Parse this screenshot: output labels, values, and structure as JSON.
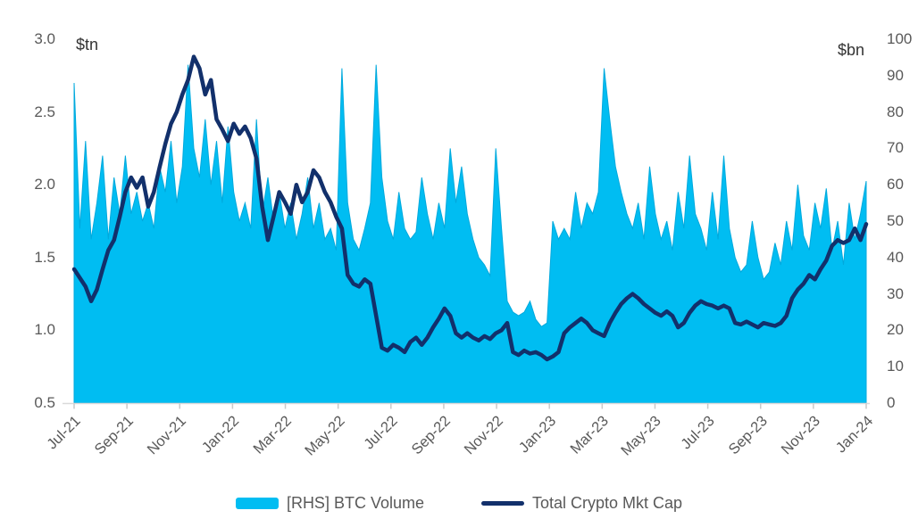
{
  "chart_data": {
    "type": [
      "area",
      "line"
    ],
    "title": "",
    "grid": false,
    "legend_position": "bottom",
    "x_tick_labels": [
      "Jul-21",
      "Sep-21",
      "Nov-21",
      "Jan-22",
      "Mar-22",
      "May-22",
      "Jul-22",
      "Sep-22",
      "Nov-22",
      "Jan-23",
      "Mar-23",
      "May-23",
      "Jul-23",
      "Sep-23",
      "Nov-23",
      "Jan-24"
    ],
    "x_range_months": 30,
    "left_axis": {
      "label": "$tn",
      "min": 0.5,
      "max": 3.0,
      "ticks": [
        "3.0",
        "2.5",
        "2.0",
        "1.5",
        "1.0",
        "0.5"
      ],
      "tick_values": [
        3.0,
        2.5,
        2.0,
        1.5,
        1.0,
        0.5
      ]
    },
    "right_axis": {
      "label": "$bn",
      "min": 0,
      "max": 100,
      "ticks": [
        "100",
        "90",
        "80",
        "70",
        "60",
        "50",
        "40",
        "30",
        "20",
        "10",
        "0"
      ],
      "tick_values": [
        100,
        90,
        80,
        70,
        60,
        50,
        40,
        30,
        20,
        10,
        0
      ]
    },
    "series": [
      {
        "name": "[RHS] BTC Volume",
        "type": "area",
        "axis": "right",
        "color": "#00bdf2",
        "edge_color": "#00a9dd",
        "values": [
          88,
          48,
          72,
          45,
          55,
          68,
          45,
          62,
          52,
          68,
          52,
          58,
          50,
          55,
          48,
          65,
          58,
          72,
          55,
          65,
          93,
          70,
          62,
          78,
          60,
          72,
          55,
          76,
          58,
          50,
          55,
          48,
          78,
          52,
          62,
          50,
          58,
          48,
          55,
          45,
          52,
          62,
          48,
          55,
          45,
          48,
          42,
          92,
          55,
          45,
          42,
          48,
          55,
          93,
          62,
          50,
          45,
          58,
          48,
          45,
          47,
          62,
          52,
          45,
          55,
          48,
          70,
          55,
          65,
          52,
          45,
          40,
          38,
          35,
          70,
          48,
          28,
          25,
          24,
          25,
          28,
          23,
          21,
          22,
          50,
          45,
          48,
          45,
          58,
          48,
          55,
          52,
          58,
          92,
          78,
          65,
          58,
          52,
          48,
          55,
          45,
          65,
          52,
          45,
          50,
          42,
          58,
          48,
          68,
          52,
          48,
          42,
          58,
          45,
          68,
          48,
          40,
          36,
          38,
          50,
          40,
          34,
          36,
          44,
          38,
          50,
          42,
          60,
          46,
          42,
          55,
          48,
          59,
          42,
          50,
          38,
          55,
          45,
          52,
          61
        ]
      },
      {
        "name": "Total Crypto Mkt Cap",
        "type": "line",
        "axis": "left",
        "color": "#12306b",
        "values": [
          1.42,
          1.36,
          1.3,
          1.2,
          1.28,
          1.42,
          1.55,
          1.62,
          1.78,
          1.95,
          2.05,
          1.98,
          2.05,
          1.85,
          1.95,
          2.12,
          2.28,
          2.42,
          2.5,
          2.62,
          2.72,
          2.88,
          2.8,
          2.62,
          2.72,
          2.45,
          2.38,
          2.3,
          2.42,
          2.35,
          2.4,
          2.32,
          2.18,
          1.85,
          1.62,
          1.78,
          1.95,
          1.88,
          1.8,
          2.0,
          1.88,
          1.95,
          2.1,
          2.05,
          1.95,
          1.88,
          1.78,
          1.7,
          1.38,
          1.32,
          1.3,
          1.35,
          1.32,
          1.1,
          0.88,
          0.86,
          0.9,
          0.88,
          0.85,
          0.92,
          0.95,
          0.9,
          0.95,
          1.02,
          1.08,
          1.15,
          1.1,
          0.98,
          0.95,
          0.98,
          0.95,
          0.93,
          0.96,
          0.94,
          0.98,
          1.0,
          1.05,
          0.85,
          0.83,
          0.86,
          0.84,
          0.85,
          0.83,
          0.8,
          0.82,
          0.85,
          0.98,
          1.02,
          1.05,
          1.08,
          1.05,
          1.0,
          0.98,
          0.96,
          1.05,
          1.12,
          1.18,
          1.22,
          1.25,
          1.22,
          1.18,
          1.15,
          1.12,
          1.1,
          1.13,
          1.1,
          1.02,
          1.05,
          1.12,
          1.17,
          1.2,
          1.18,
          1.17,
          1.15,
          1.17,
          1.15,
          1.05,
          1.04,
          1.06,
          1.04,
          1.02,
          1.05,
          1.04,
          1.03,
          1.05,
          1.1,
          1.22,
          1.28,
          1.32,
          1.38,
          1.35,
          1.42,
          1.48,
          1.58,
          1.62,
          1.6,
          1.62,
          1.7,
          1.62,
          1.73
        ]
      }
    ],
    "axis_line_color": "#d9d9d9",
    "tick_mark_color": "#c9c9c9"
  },
  "legend": {
    "items": [
      {
        "label": "[RHS] BTC Volume"
      },
      {
        "label": "Total Crypto Mkt Cap"
      }
    ]
  }
}
